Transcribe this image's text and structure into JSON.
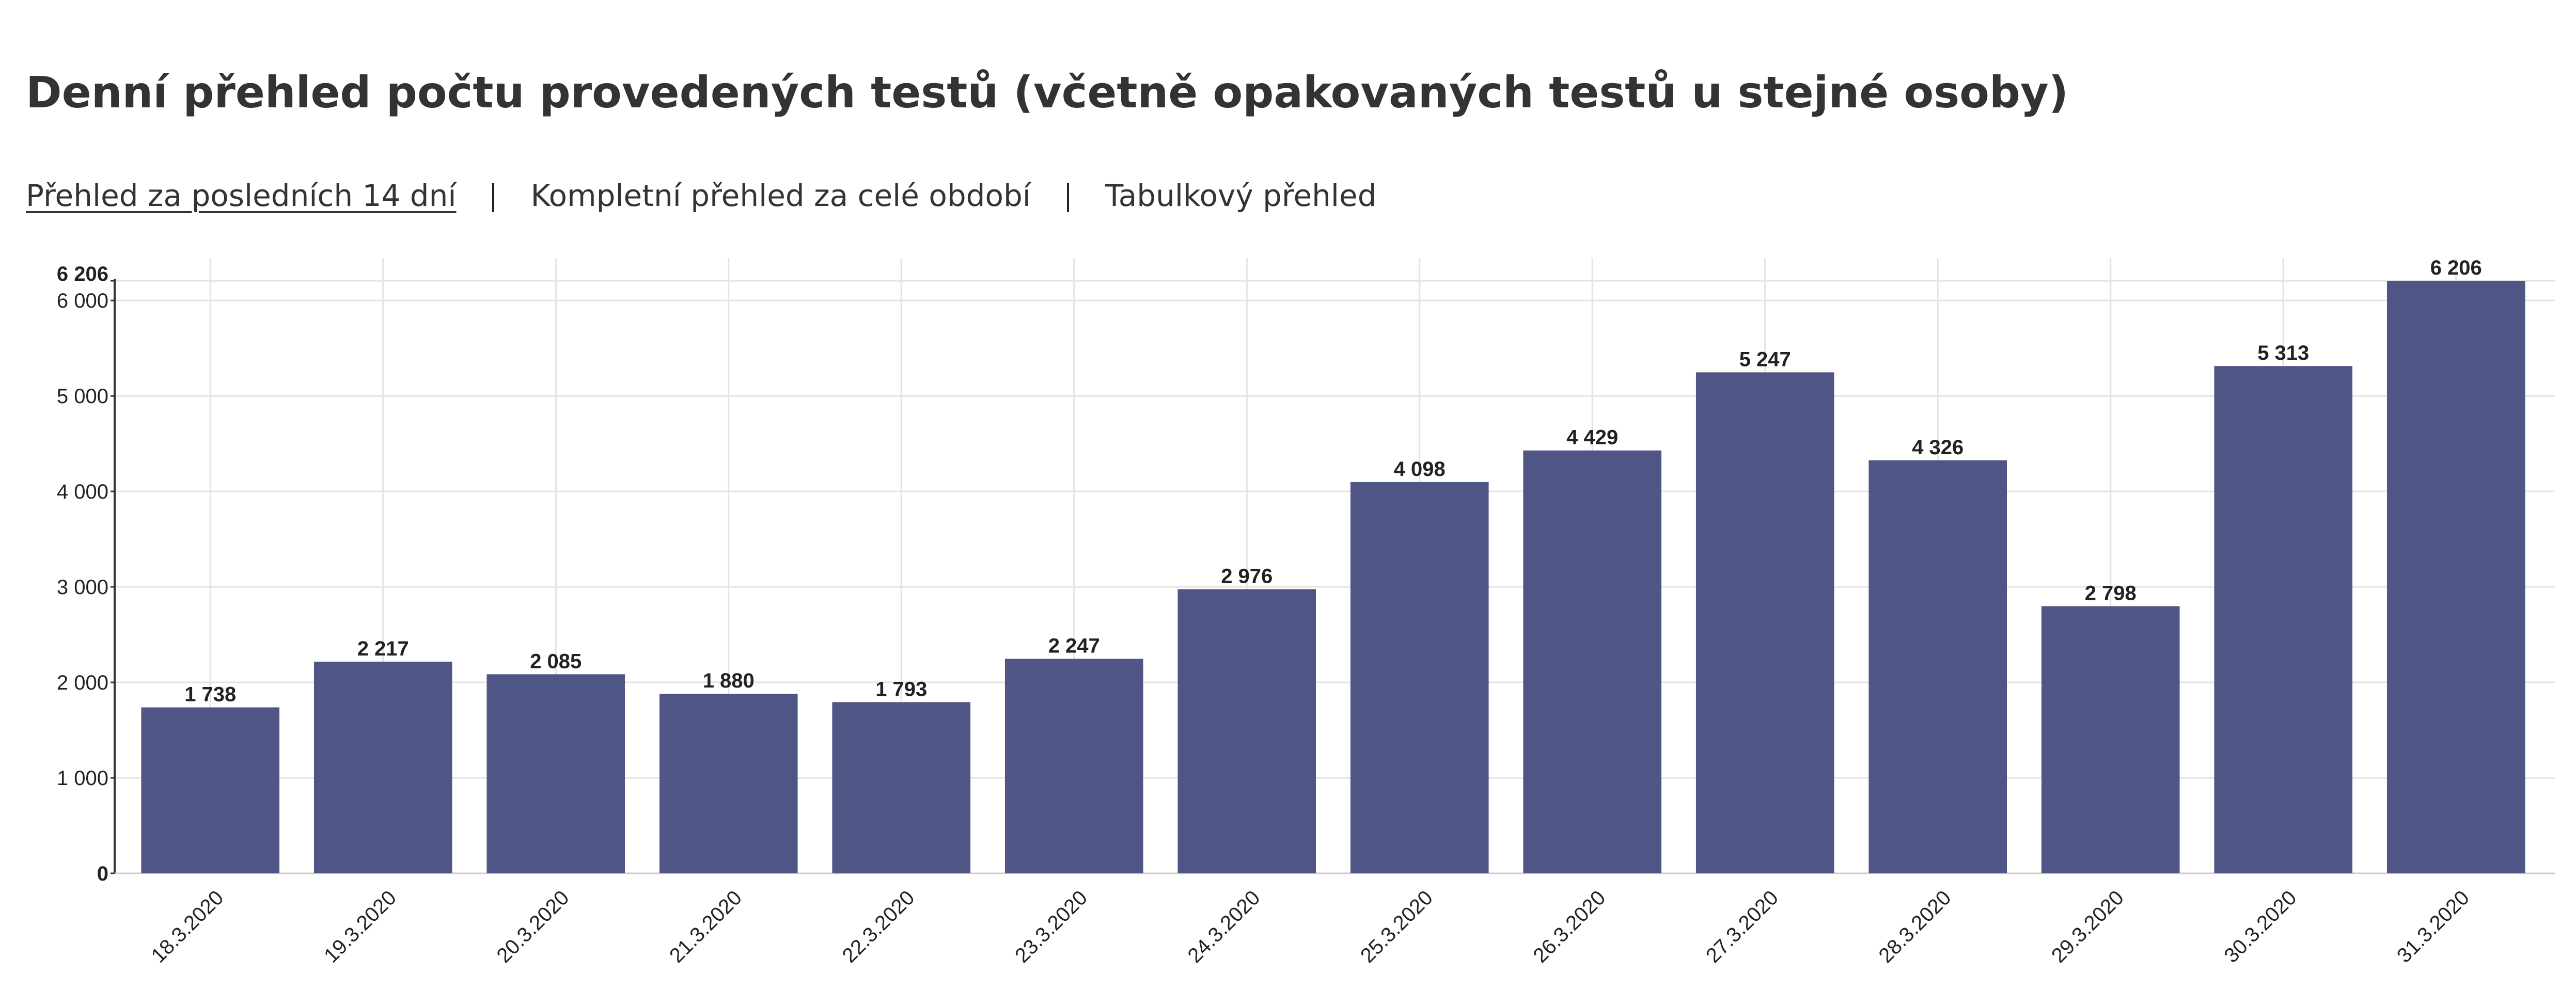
{
  "header": {
    "title": "Denní přehled počtu provedených testů (včetně opakovaných testů u stejné osoby)"
  },
  "tabs": [
    "Přehled za posledních 14 dní",
    "Kompletní přehled za celé období",
    "Tabulkový přehled"
  ],
  "chart_data": {
    "type": "bar",
    "categories": [
      "18.3.2020",
      "19.3.2020",
      "20.3.2020",
      "21.3.2020",
      "22.3.2020",
      "23.3.2020",
      "24.3.2020",
      "25.3.2020",
      "26.3.2020",
      "27.3.2020",
      "28.3.2020",
      "29.3.2020",
      "30.3.2020",
      "31.3.2020"
    ],
    "values": [
      1738,
      2217,
      2085,
      1880,
      1793,
      2247,
      2976,
      4098,
      4429,
      5247,
      4326,
      2798,
      5313,
      6206
    ],
    "value_labels": [
      "1 738",
      "2 217",
      "2 085",
      "1 880",
      "1 793",
      "2 247",
      "2 976",
      "4 098",
      "4 429",
      "5 247",
      "4 326",
      "2 798",
      "5 313",
      "6 206"
    ],
    "color": "#4f5584",
    "ylim": [
      0,
      6206
    ],
    "yticks": [
      0,
      {
        "value": 1000,
        "label": "1 000"
      },
      {
        "value": 2000,
        "label": "2 000"
      },
      {
        "value": 3000,
        "label": "3 000"
      },
      {
        "value": 4000,
        "label": "4 000"
      },
      {
        "value": 5000,
        "label": "5 000"
      },
      {
        "value": 6000,
        "label": "6 000"
      },
      {
        "value": 6206,
        "label": "6 206"
      }
    ],
    "grid": true
  }
}
